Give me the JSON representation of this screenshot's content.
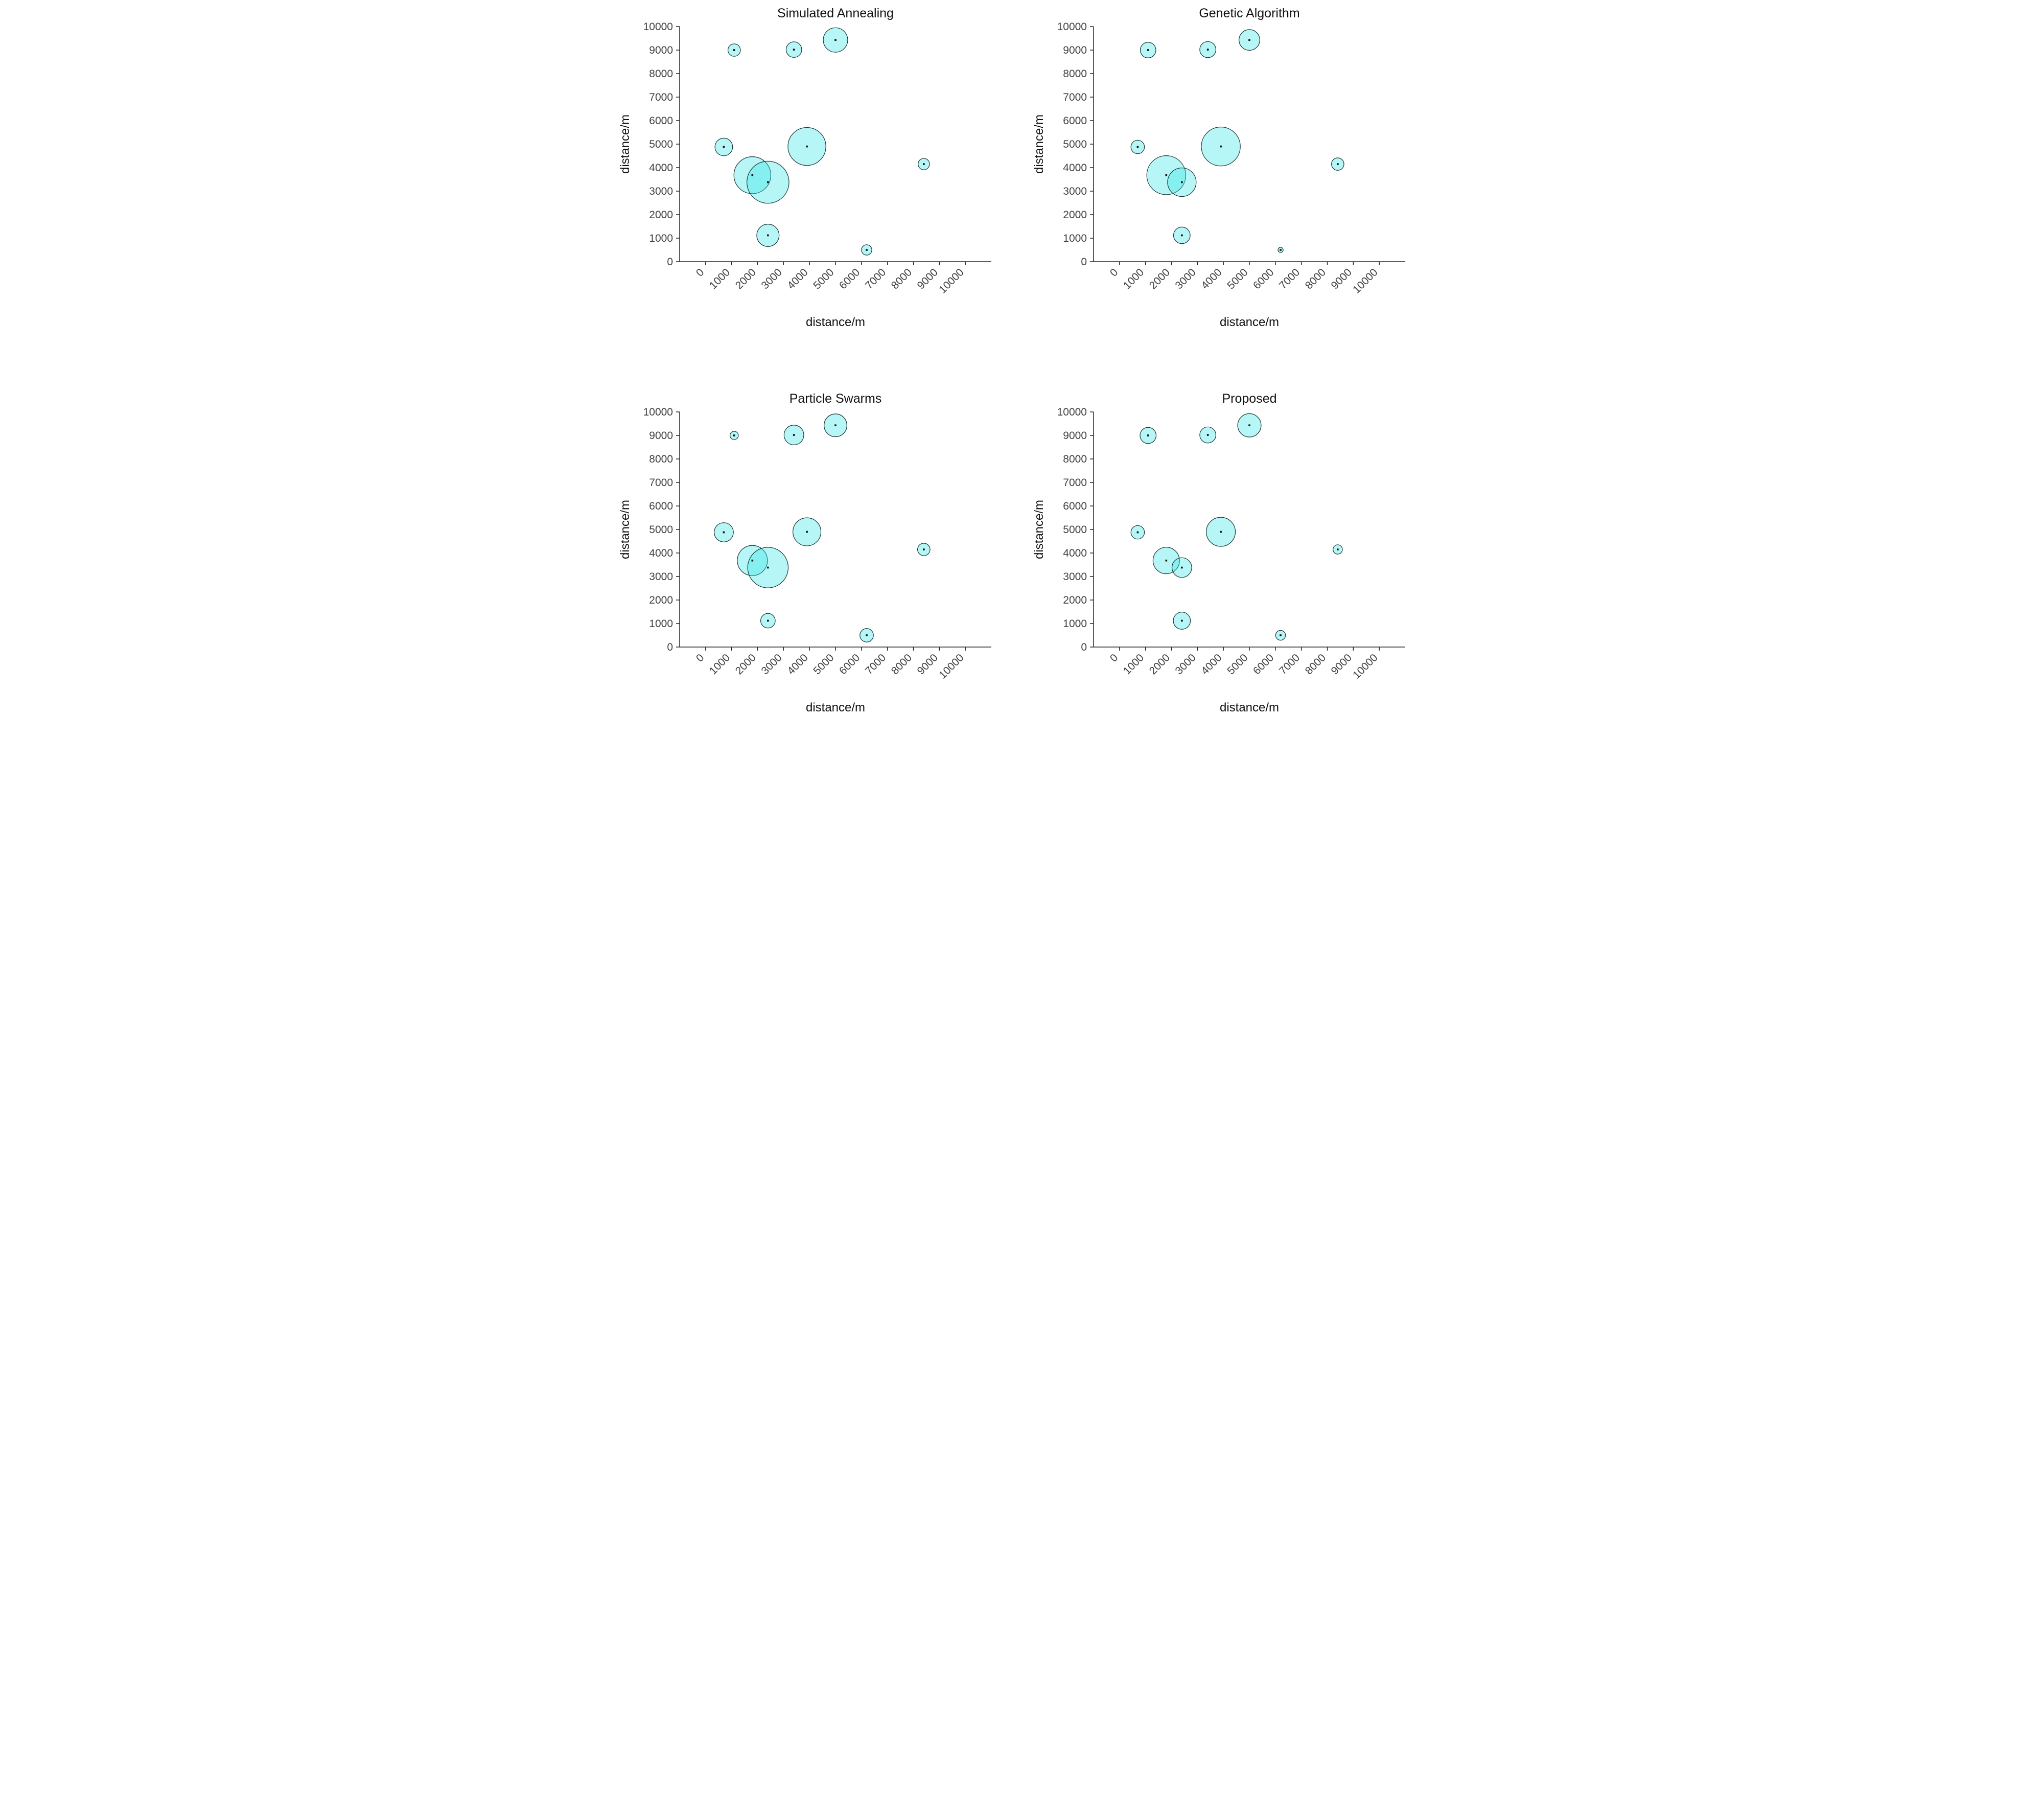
{
  "page": {
    "background": "#ffffff"
  },
  "style": {
    "bubble_fill": "#2ee6e6",
    "bubble_fill_opacity": 0.35,
    "bubble_stroke": "#1a3535",
    "marker_color": "#111111",
    "axis_color": "#262626",
    "tick_label_color": "#404040"
  },
  "chart_data": [
    {
      "type": "bubble",
      "title": "Simulated Annealing",
      "xlabel": "distance/m",
      "ylabel": "distance/m",
      "xlim": [
        -1000,
        11000
      ],
      "ylim": [
        0,
        10000
      ],
      "xticks": [
        0,
        1000,
        2000,
        3000,
        4000,
        5000,
        6000,
        7000,
        8000,
        9000,
        10000
      ],
      "yticks": [
        0,
        1000,
        2000,
        3000,
        4000,
        5000,
        6000,
        7000,
        8000,
        9000,
        10000
      ],
      "grid": false,
      "legend": "none",
      "points": [
        {
          "x": 1100,
          "y": 9000,
          "r": 240
        },
        {
          "x": 3400,
          "y": 9020,
          "r": 300
        },
        {
          "x": 5000,
          "y": 9430,
          "r": 470
        },
        {
          "x": 700,
          "y": 4880,
          "r": 340
        },
        {
          "x": 3900,
          "y": 4900,
          "r": 730
        },
        {
          "x": 1800,
          "y": 3680,
          "r": 710
        },
        {
          "x": 2400,
          "y": 3380,
          "r": 810
        },
        {
          "x": 8400,
          "y": 4150,
          "r": 220
        },
        {
          "x": 2400,
          "y": 1120,
          "r": 430
        },
        {
          "x": 6200,
          "y": 500,
          "r": 200
        }
      ]
    },
    {
      "type": "bubble",
      "title": "Genetic Algorithm",
      "xlabel": "distance/m",
      "ylabel": "distance/m",
      "xlim": [
        -1000,
        11000
      ],
      "ylim": [
        0,
        10000
      ],
      "xticks": [
        0,
        1000,
        2000,
        3000,
        4000,
        5000,
        6000,
        7000,
        8000,
        9000,
        10000
      ],
      "yticks": [
        0,
        1000,
        2000,
        3000,
        4000,
        5000,
        6000,
        7000,
        8000,
        9000,
        10000
      ],
      "grid": false,
      "legend": "none",
      "points": [
        {
          "x": 1100,
          "y": 9000,
          "r": 300
        },
        {
          "x": 3400,
          "y": 9020,
          "r": 310
        },
        {
          "x": 5000,
          "y": 9430,
          "r": 400
        },
        {
          "x": 700,
          "y": 4880,
          "r": 260
        },
        {
          "x": 3900,
          "y": 4900,
          "r": 750
        },
        {
          "x": 1800,
          "y": 3680,
          "r": 750
        },
        {
          "x": 2400,
          "y": 3380,
          "r": 550
        },
        {
          "x": 8400,
          "y": 4150,
          "r": 240
        },
        {
          "x": 2400,
          "y": 1120,
          "r": 320
        },
        {
          "x": 6200,
          "y": 500,
          "r": 100
        }
      ]
    },
    {
      "type": "bubble",
      "title": "Particle Swarms",
      "xlabel": "distance/m",
      "ylabel": "distance/m",
      "xlim": [
        -1000,
        11000
      ],
      "ylim": [
        0,
        10000
      ],
      "xticks": [
        0,
        1000,
        2000,
        3000,
        4000,
        5000,
        6000,
        7000,
        8000,
        9000,
        10000
      ],
      "yticks": [
        0,
        1000,
        2000,
        3000,
        4000,
        5000,
        6000,
        7000,
        8000,
        9000,
        10000
      ],
      "grid": false,
      "legend": "none",
      "points": [
        {
          "x": 1100,
          "y": 9000,
          "r": 160
        },
        {
          "x": 3400,
          "y": 9020,
          "r": 380
        },
        {
          "x": 5000,
          "y": 9430,
          "r": 440
        },
        {
          "x": 700,
          "y": 4880,
          "r": 370
        },
        {
          "x": 3900,
          "y": 4900,
          "r": 540
        },
        {
          "x": 1800,
          "y": 3680,
          "r": 580
        },
        {
          "x": 2400,
          "y": 3380,
          "r": 780
        },
        {
          "x": 8400,
          "y": 4150,
          "r": 240
        },
        {
          "x": 2400,
          "y": 1120,
          "r": 280
        },
        {
          "x": 6200,
          "y": 500,
          "r": 260
        }
      ]
    },
    {
      "type": "bubble",
      "title": "Proposed",
      "xlabel": "distance/m",
      "ylabel": "distance/m",
      "xlim": [
        -1000,
        11000
      ],
      "ylim": [
        0,
        10000
      ],
      "xticks": [
        0,
        1000,
        2000,
        3000,
        4000,
        5000,
        6000,
        7000,
        8000,
        9000,
        10000
      ],
      "yticks": [
        0,
        1000,
        2000,
        3000,
        4000,
        5000,
        6000,
        7000,
        8000,
        9000,
        10000
      ],
      "grid": false,
      "legend": "none",
      "points": [
        {
          "x": 1100,
          "y": 9000,
          "r": 310
        },
        {
          "x": 3400,
          "y": 9020,
          "r": 310
        },
        {
          "x": 5000,
          "y": 9430,
          "r": 450
        },
        {
          "x": 700,
          "y": 4880,
          "r": 260
        },
        {
          "x": 3900,
          "y": 4900,
          "r": 560
        },
        {
          "x": 1800,
          "y": 3680,
          "r": 510
        },
        {
          "x": 2400,
          "y": 3380,
          "r": 380
        },
        {
          "x": 8400,
          "y": 4150,
          "r": 180
        },
        {
          "x": 2400,
          "y": 1120,
          "r": 330
        },
        {
          "x": 6200,
          "y": 500,
          "r": 190
        }
      ]
    }
  ]
}
